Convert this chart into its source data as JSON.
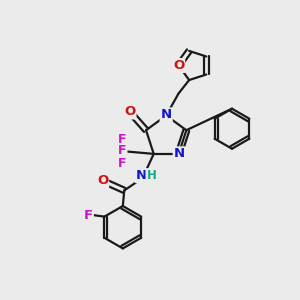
{
  "bg_color": "#ebebeb",
  "bond_color": "#1a1a1a",
  "bond_width": 1.6,
  "atom_colors": {
    "N": "#1414cc",
    "O": "#cc1414",
    "F": "#cc14cc",
    "H": "#14aa88"
  },
  "font_size": 9.5
}
